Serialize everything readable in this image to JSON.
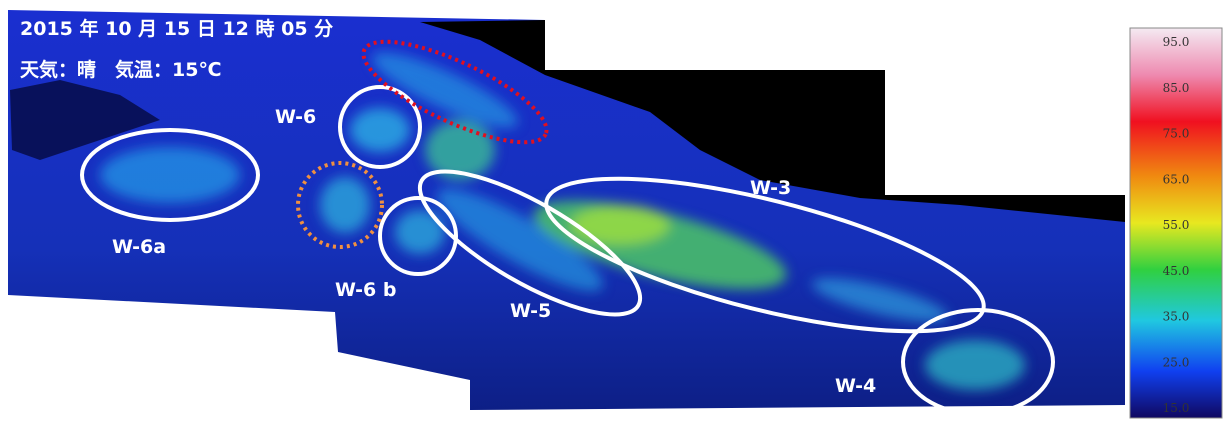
{
  "header": {
    "datetime": "2015 年 10 月 15 日 12 時 05 分",
    "weather": "天気：晴　気温：15℃"
  },
  "zones": [
    "W-6",
    "W-6a",
    "W-6 b",
    "W-5",
    "W-3",
    "W-4"
  ],
  "colorbar": {
    "ticks": [
      "95.0",
      "85.0",
      "75.0",
      "65.0",
      "55.0",
      "45.0",
      "35.0",
      "25.0",
      "15.0"
    ]
  }
}
